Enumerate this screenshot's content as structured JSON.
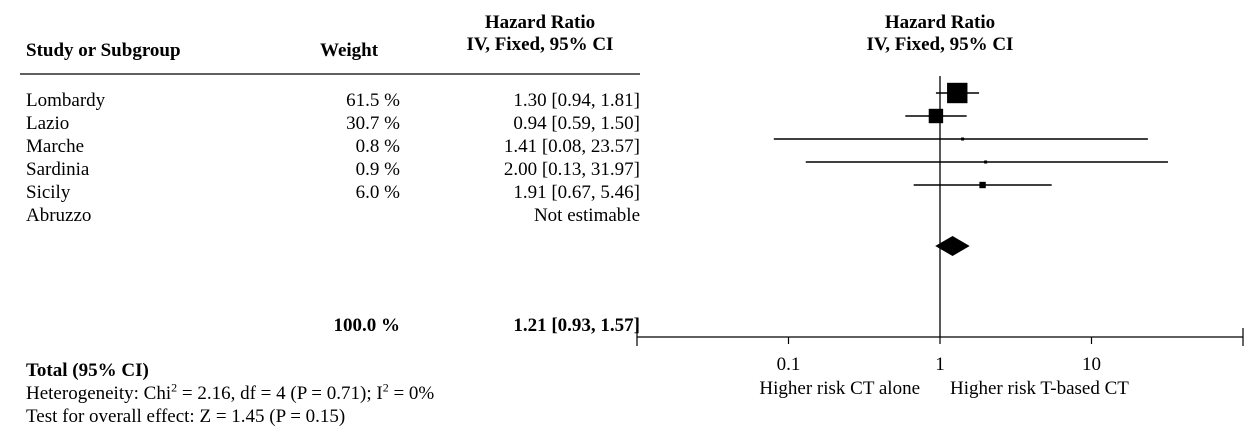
{
  "headers": {
    "study": "Study or Subgroup",
    "weight": "Weight",
    "hr_table_line1": "Hazard Ratio",
    "hr_table_line2": "IV, Fixed, 95% CI",
    "hr_plot_line1": "Hazard Ratio",
    "hr_plot_line2": "IV, Fixed, 95% CI"
  },
  "total": {
    "weight": "100.0 %",
    "estimate": "1.21 [0.93, 1.57]",
    "label": "Total (95% CI)",
    "heterogeneity_pre": "Heterogeneity: Chi",
    "heterogeneity_mid": " = 2.16, df = 4 (P = 0.71); I",
    "heterogeneity_post": " = 0%",
    "sup": "2",
    "overall_effect": "Test for overall effect: Z = 1.45 (P = 0.15)"
  },
  "chart_data": {
    "type": "forest",
    "scale": "log",
    "xlim": [
      0.01,
      100
    ],
    "x_ticks": [
      0.1,
      1,
      10
    ],
    "x_tick_labels": [
      "0.1",
      "1",
      "10"
    ],
    "left_label": "Higher risk CT alone",
    "right_label": "Higher risk T-based CT",
    "studies": [
      {
        "name": "Lombardy",
        "weight_text": "61.5 %",
        "weight": 61.5,
        "ci_text": "1.30 [0.94, 1.81]",
        "hr": 1.3,
        "lower": 0.94,
        "upper": 1.81
      },
      {
        "name": "Lazio",
        "weight_text": "30.7 %",
        "weight": 30.7,
        "ci_text": "0.94 [0.59, 1.50]",
        "hr": 0.94,
        "lower": 0.59,
        "upper": 1.5
      },
      {
        "name": "Marche",
        "weight_text": "0.8 %",
        "weight": 0.8,
        "ci_text": "1.41 [0.08, 23.57]",
        "hr": 1.41,
        "lower": 0.08,
        "upper": 23.57
      },
      {
        "name": "Sardinia",
        "weight_text": "0.9 %",
        "weight": 0.9,
        "ci_text": "2.00 [0.13, 31.97]",
        "hr": 2.0,
        "lower": 0.13,
        "upper": 31.97
      },
      {
        "name": "Sicily",
        "weight_text": "6.0 %",
        "weight": 6.0,
        "ci_text": "1.91 [0.67, 5.46]",
        "hr": 1.91,
        "lower": 0.67,
        "upper": 5.46
      },
      {
        "name": "Abruzzo",
        "weight_text": "",
        "weight": null,
        "ci_text": "Not estimable",
        "hr": null,
        "lower": null,
        "upper": null
      }
    ],
    "pooled": {
      "hr": 1.21,
      "lower": 0.93,
      "upper": 1.57
    }
  }
}
